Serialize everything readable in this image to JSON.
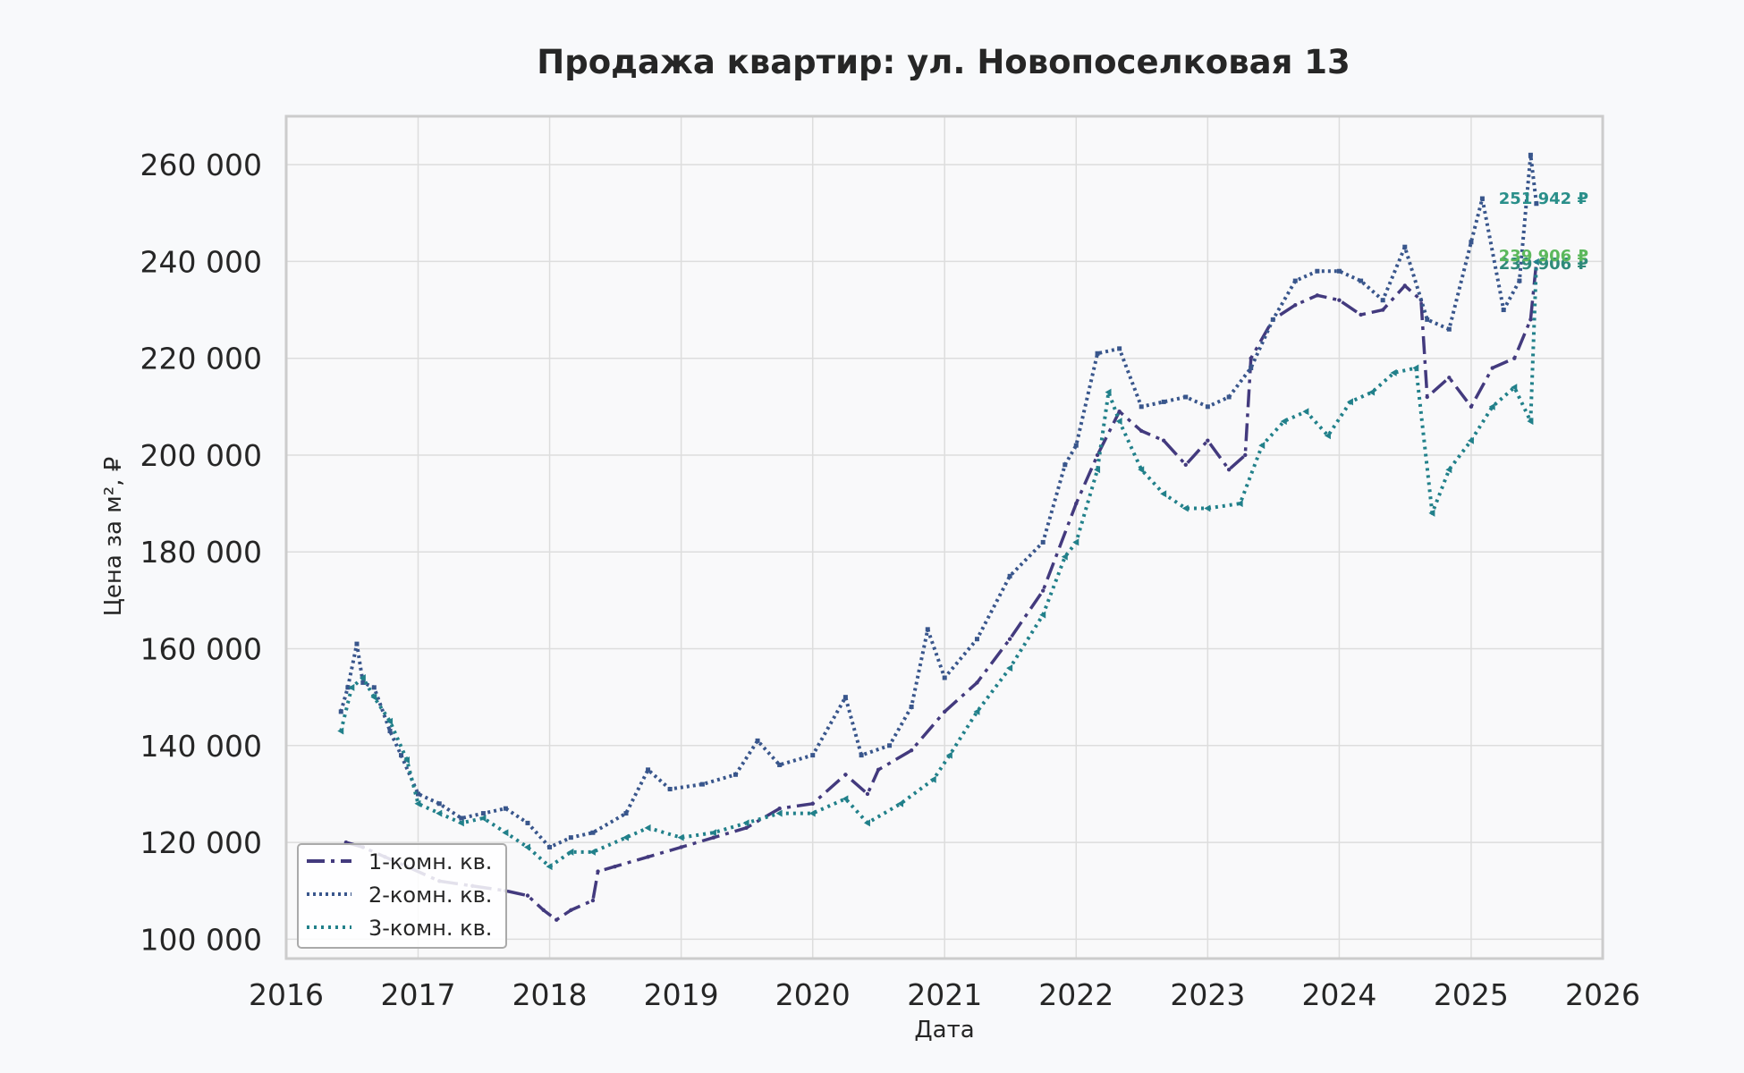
{
  "chart_data": {
    "type": "line",
    "title": "Продажа квартир: ул. Новопоселковая 13",
    "xlabel": "Дата",
    "ylabel": "Цена за м², ₽",
    "x_ticks": [
      "2016",
      "2017",
      "2018",
      "2019",
      "2020",
      "2021",
      "2022",
      "2023",
      "2024",
      "2025",
      "2026"
    ],
    "y_ticks": [
      "100 000",
      "120 000",
      "140 000",
      "160 000",
      "180 000",
      "200 000",
      "220 000",
      "240 000",
      "260 000"
    ],
    "xlim": [
      "2016-01-01",
      "2026-01-01"
    ],
    "ylim": [
      96000,
      270000
    ],
    "grid": true,
    "legend_position": "lower-left",
    "series": [
      {
        "name": "1-комн. кв.",
        "color": "#433a7e",
        "style": "dashdot",
        "end_label": "239 906 ₽",
        "end_label_color": "#2f8a7a",
        "points": [
          [
            "2016-06-15",
            120000
          ],
          [
            "2016-08-01",
            119000
          ],
          [
            "2016-10-01",
            117000
          ],
          [
            "2016-12-01",
            115000
          ],
          [
            "2017-03-01",
            112000
          ],
          [
            "2017-06-01",
            111000
          ],
          [
            "2017-09-01",
            110000
          ],
          [
            "2017-11-01",
            109000
          ],
          [
            "2017-12-15",
            106000
          ],
          [
            "2018-01-20",
            104000
          ],
          [
            "2018-03-01",
            106000
          ],
          [
            "2018-05-01",
            108000
          ],
          [
            "2018-05-15",
            114000
          ],
          [
            "2018-07-01",
            115000
          ],
          [
            "2018-10-01",
            117000
          ],
          [
            "2019-01-01",
            119000
          ],
          [
            "2019-04-01",
            121000
          ],
          [
            "2019-07-01",
            123000
          ],
          [
            "2019-10-01",
            127000
          ],
          [
            "2020-01-01",
            128000
          ],
          [
            "2020-04-01",
            134000
          ],
          [
            "2020-06-01",
            130000
          ],
          [
            "2020-07-01",
            135000
          ],
          [
            "2020-10-01",
            139000
          ],
          [
            "2021-01-01",
            147000
          ],
          [
            "2021-04-01",
            153000
          ],
          [
            "2021-07-01",
            162000
          ],
          [
            "2021-10-01",
            172000
          ],
          [
            "2022-01-01",
            190000
          ],
          [
            "2022-03-01",
            200000
          ],
          [
            "2022-05-01",
            209000
          ],
          [
            "2022-07-01",
            205000
          ],
          [
            "2022-09-01",
            203000
          ],
          [
            "2022-11-01",
            198000
          ],
          [
            "2023-01-01",
            203000
          ],
          [
            "2023-03-01",
            197000
          ],
          [
            "2023-04-15",
            200000
          ],
          [
            "2023-05-01",
            220000
          ],
          [
            "2023-07-01",
            228000
          ],
          [
            "2023-09-01",
            231000
          ],
          [
            "2023-11-01",
            233000
          ],
          [
            "2024-01-01",
            232000
          ],
          [
            "2024-03-01",
            229000
          ],
          [
            "2024-05-01",
            230000
          ],
          [
            "2024-07-01",
            235000
          ],
          [
            "2024-08-15",
            232000
          ],
          [
            "2024-09-01",
            212000
          ],
          [
            "2024-11-01",
            216000
          ],
          [
            "2025-01-01",
            210000
          ],
          [
            "2025-03-01",
            218000
          ],
          [
            "2025-05-01",
            220000
          ],
          [
            "2025-06-15",
            228000
          ],
          [
            "2025-07-01",
            239906
          ]
        ]
      },
      {
        "name": "2-комн. кв.",
        "color": "#39568c",
        "style": "dotted",
        "end_label": "251 942 ₽",
        "end_label_color": "#2a8f8a",
        "points": [
          [
            "2016-06-01",
            147000
          ],
          [
            "2016-06-20",
            152000
          ],
          [
            "2016-07-15",
            161000
          ],
          [
            "2016-08-01",
            153000
          ],
          [
            "2016-09-01",
            152000
          ],
          [
            "2016-10-15",
            143000
          ],
          [
            "2016-11-15",
            138000
          ],
          [
            "2017-01-01",
            130000
          ],
          [
            "2017-03-01",
            128000
          ],
          [
            "2017-05-01",
            125000
          ],
          [
            "2017-07-01",
            126000
          ],
          [
            "2017-09-01",
            127000
          ],
          [
            "2017-11-01",
            124000
          ],
          [
            "2018-01-01",
            119000
          ],
          [
            "2018-03-01",
            121000
          ],
          [
            "2018-05-01",
            122000
          ],
          [
            "2018-08-01",
            126000
          ],
          [
            "2018-10-01",
            135000
          ],
          [
            "2018-12-01",
            131000
          ],
          [
            "2019-03-01",
            132000
          ],
          [
            "2019-06-01",
            134000
          ],
          [
            "2019-08-01",
            141000
          ],
          [
            "2019-10-01",
            136000
          ],
          [
            "2020-01-01",
            138000
          ],
          [
            "2020-04-01",
            150000
          ],
          [
            "2020-05-15",
            138000
          ],
          [
            "2020-08-01",
            140000
          ],
          [
            "2020-10-01",
            148000
          ],
          [
            "2020-11-15",
            164000
          ],
          [
            "2021-01-01",
            154000
          ],
          [
            "2021-04-01",
            162000
          ],
          [
            "2021-07-01",
            175000
          ],
          [
            "2021-10-01",
            182000
          ],
          [
            "2021-12-01",
            198000
          ],
          [
            "2022-01-01",
            202000
          ],
          [
            "2022-03-01",
            221000
          ],
          [
            "2022-05-01",
            222000
          ],
          [
            "2022-07-01",
            210000
          ],
          [
            "2022-09-01",
            211000
          ],
          [
            "2022-11-01",
            212000
          ],
          [
            "2023-01-01",
            210000
          ],
          [
            "2023-03-01",
            212000
          ],
          [
            "2023-05-01",
            218000
          ],
          [
            "2023-07-01",
            228000
          ],
          [
            "2023-09-01",
            236000
          ],
          [
            "2023-11-01",
            238000
          ],
          [
            "2024-01-01",
            238000
          ],
          [
            "2024-03-01",
            236000
          ],
          [
            "2024-05-01",
            232000
          ],
          [
            "2024-07-01",
            243000
          ],
          [
            "2024-09-01",
            228000
          ],
          [
            "2024-11-01",
            226000
          ],
          [
            "2025-01-01",
            244000
          ],
          [
            "2025-02-01",
            253000
          ],
          [
            "2025-04-01",
            230000
          ],
          [
            "2025-05-15",
            236000
          ],
          [
            "2025-06-15",
            262000
          ],
          [
            "2025-07-01",
            251942
          ]
        ]
      },
      {
        "name": "3-комн. кв.",
        "color": "#21808a",
        "style": "dotted-triangle",
        "end_label": "239 906 ₽",
        "end_label_color": "#5cb85c",
        "points": [
          [
            "2016-06-01",
            143000
          ],
          [
            "2016-07-01",
            152000
          ],
          [
            "2016-08-01",
            154000
          ],
          [
            "2016-09-01",
            150000
          ],
          [
            "2016-10-15",
            145000
          ],
          [
            "2016-12-01",
            137000
          ],
          [
            "2017-01-01",
            128000
          ],
          [
            "2017-03-01",
            126000
          ],
          [
            "2017-05-01",
            124000
          ],
          [
            "2017-07-01",
            125000
          ],
          [
            "2017-09-01",
            122000
          ],
          [
            "2017-11-01",
            119000
          ],
          [
            "2018-01-01",
            115000
          ],
          [
            "2018-03-01",
            118000
          ],
          [
            "2018-05-01",
            118000
          ],
          [
            "2018-08-01",
            121000
          ],
          [
            "2018-10-01",
            123000
          ],
          [
            "2019-01-01",
            121000
          ],
          [
            "2019-04-01",
            122000
          ],
          [
            "2019-07-01",
            124000
          ],
          [
            "2019-10-01",
            126000
          ],
          [
            "2020-01-01",
            126000
          ],
          [
            "2020-04-01",
            129000
          ],
          [
            "2020-06-01",
            124000
          ],
          [
            "2020-09-01",
            128000
          ],
          [
            "2020-12-01",
            133000
          ],
          [
            "2021-01-15",
            138000
          ],
          [
            "2021-04-01",
            147000
          ],
          [
            "2021-07-01",
            156000
          ],
          [
            "2021-10-01",
            167000
          ],
          [
            "2021-12-01",
            179000
          ],
          [
            "2022-01-01",
            182000
          ],
          [
            "2022-03-01",
            197000
          ],
          [
            "2022-04-01",
            213000
          ],
          [
            "2022-05-01",
            207000
          ],
          [
            "2022-07-01",
            197000
          ],
          [
            "2022-09-01",
            192000
          ],
          [
            "2022-11-01",
            189000
          ],
          [
            "2023-01-01",
            189000
          ],
          [
            "2023-04-01",
            190000
          ],
          [
            "2023-06-01",
            202000
          ],
          [
            "2023-08-01",
            207000
          ],
          [
            "2023-10-01",
            209000
          ],
          [
            "2023-12-01",
            204000
          ],
          [
            "2024-02-01",
            211000
          ],
          [
            "2024-04-01",
            213000
          ],
          [
            "2024-06-01",
            217000
          ],
          [
            "2024-08-01",
            218000
          ],
          [
            "2024-09-15",
            188000
          ],
          [
            "2024-11-01",
            197000
          ],
          [
            "2025-01-01",
            203000
          ],
          [
            "2025-03-01",
            210000
          ],
          [
            "2025-05-01",
            214000
          ],
          [
            "2025-06-15",
            207000
          ],
          [
            "2025-07-01",
            239906
          ]
        ]
      }
    ]
  }
}
